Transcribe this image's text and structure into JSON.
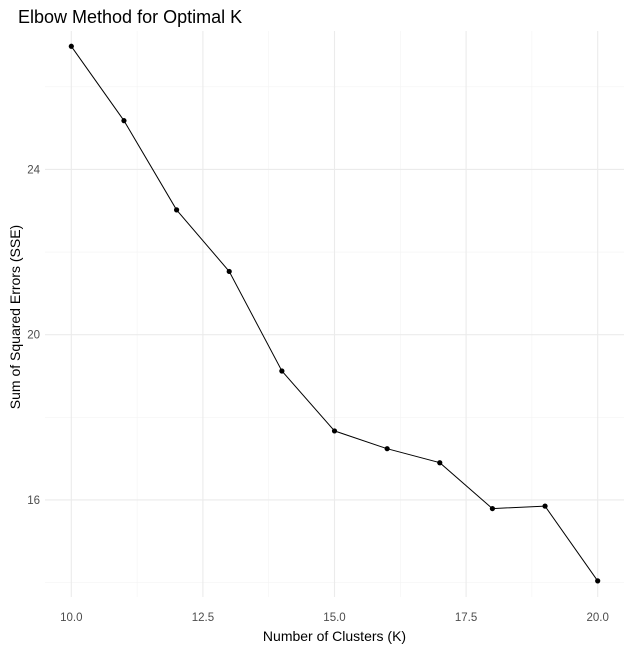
{
  "chart_data": {
    "type": "line",
    "title": "Elbow Method for Optimal K",
    "xlabel": "Number of Clusters (K)",
    "ylabel": "Sum of Squared Errors (SSE)",
    "x": [
      10,
      11,
      12,
      13,
      14,
      15,
      16,
      17,
      18,
      19,
      20
    ],
    "y": [
      26.98,
      25.18,
      23.02,
      21.53,
      19.12,
      17.67,
      17.24,
      16.9,
      15.79,
      15.85,
      14.04
    ],
    "xlim": [
      9.5,
      20.5
    ],
    "ylim": [
      13.65,
      27.35
    ],
    "xticks": [
      10.0,
      12.5,
      15.0,
      17.5,
      20.0
    ],
    "xtick_labels": [
      "10.0",
      "12.5",
      "15.0",
      "17.5",
      "20.0"
    ],
    "yticks": [
      16,
      20,
      24
    ],
    "ytick_labels": [
      "16",
      "20",
      "24"
    ],
    "grid": true,
    "colors": {
      "line": "#000000",
      "point": "#000000",
      "grid": "#ebebeb"
    }
  }
}
